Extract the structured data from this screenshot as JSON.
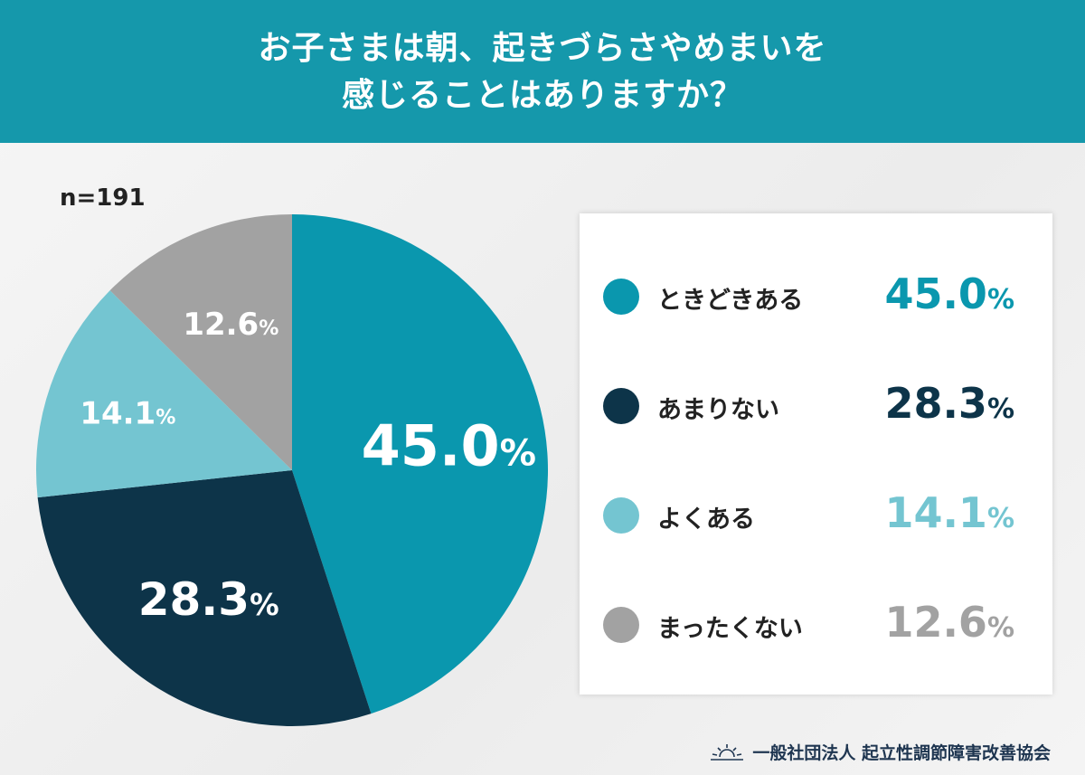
{
  "title_line1": "お子さまは朝、起きづらさやめまいを",
  "title_line2": "感じることはありますか？",
  "n_label": "n=191",
  "footer": "一般社団法人 起立性調節障害改善協会",
  "chart_data": {
    "type": "pie",
    "start": "top",
    "direction": "clockwise",
    "legend_position": "right",
    "slices": [
      {
        "label": "ときどきある",
        "value": 45.0,
        "display": "45.0",
        "color": "#0a97ae"
      },
      {
        "label": "あまりない",
        "value": 28.3,
        "display": "28.3",
        "color": "#0d3449"
      },
      {
        "label": "よくある",
        "value": 14.1,
        "display": "14.1",
        "color": "#74c5d1"
      },
      {
        "label": "まったくない",
        "value": 12.6,
        "display": "12.6",
        "color": "#a2a2a2"
      }
    ],
    "unit": "%"
  }
}
